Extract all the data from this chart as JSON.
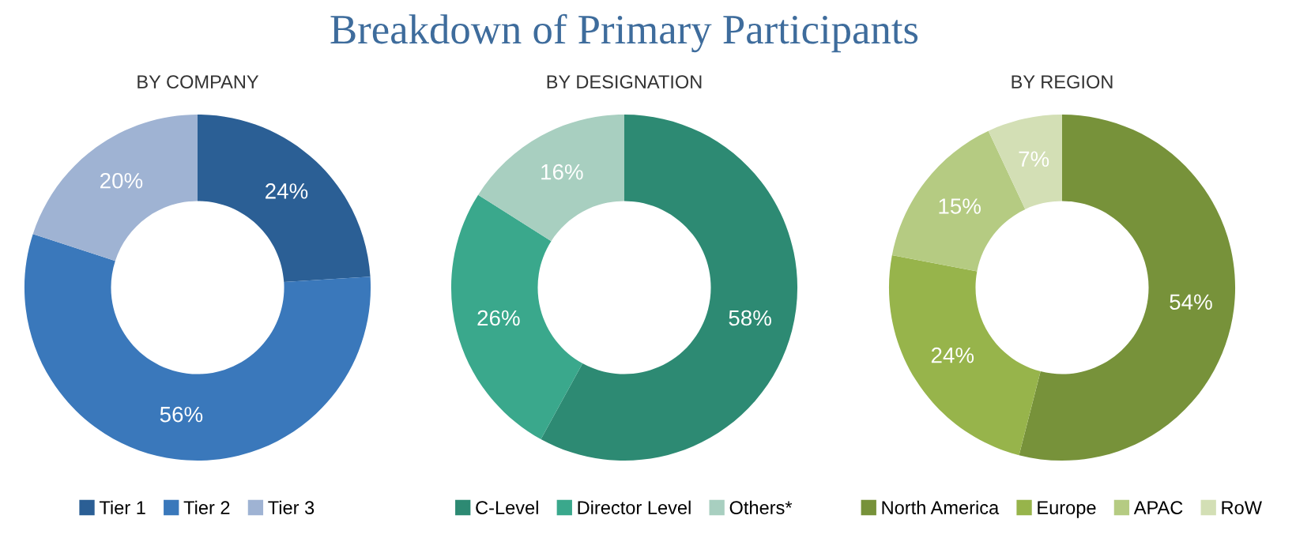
{
  "chart_data": [
    {
      "type": "donut",
      "subtitle": "BY COMPANY",
      "categories": [
        "Tier 1",
        "Tier 2",
        "Tier 3"
      ],
      "values": [
        24,
        56,
        20
      ],
      "colors": [
        "#2b5f95",
        "#3a78bb",
        "#9fb3d3"
      ],
      "value_labels": [
        "24%",
        "56%",
        "20%"
      ],
      "legend": "bottom"
    },
    {
      "type": "donut",
      "title": "Breakdown of Primary Participants",
      "subtitle": "BY DESIGNATION",
      "categories": [
        "C-Level",
        "Director Level",
        "Others*"
      ],
      "values": [
        58,
        26,
        16
      ],
      "colors": [
        "#2d8a73",
        "#3aa88c",
        "#a8cfc0"
      ],
      "value_labels": [
        "58%",
        "26%",
        "16%"
      ],
      "legend": "bottom"
    },
    {
      "type": "donut",
      "subtitle": "BY REGION",
      "categories": [
        "North America",
        "Europe",
        "APAC",
        "RoW"
      ],
      "values": [
        54,
        24,
        15,
        7
      ],
      "colors": [
        "#77923a",
        "#97b44b",
        "#b5cb82",
        "#d3dfb5"
      ],
      "value_labels": [
        "54%",
        "24%",
        "15%",
        "7%"
      ],
      "legend": "bottom"
    }
  ]
}
